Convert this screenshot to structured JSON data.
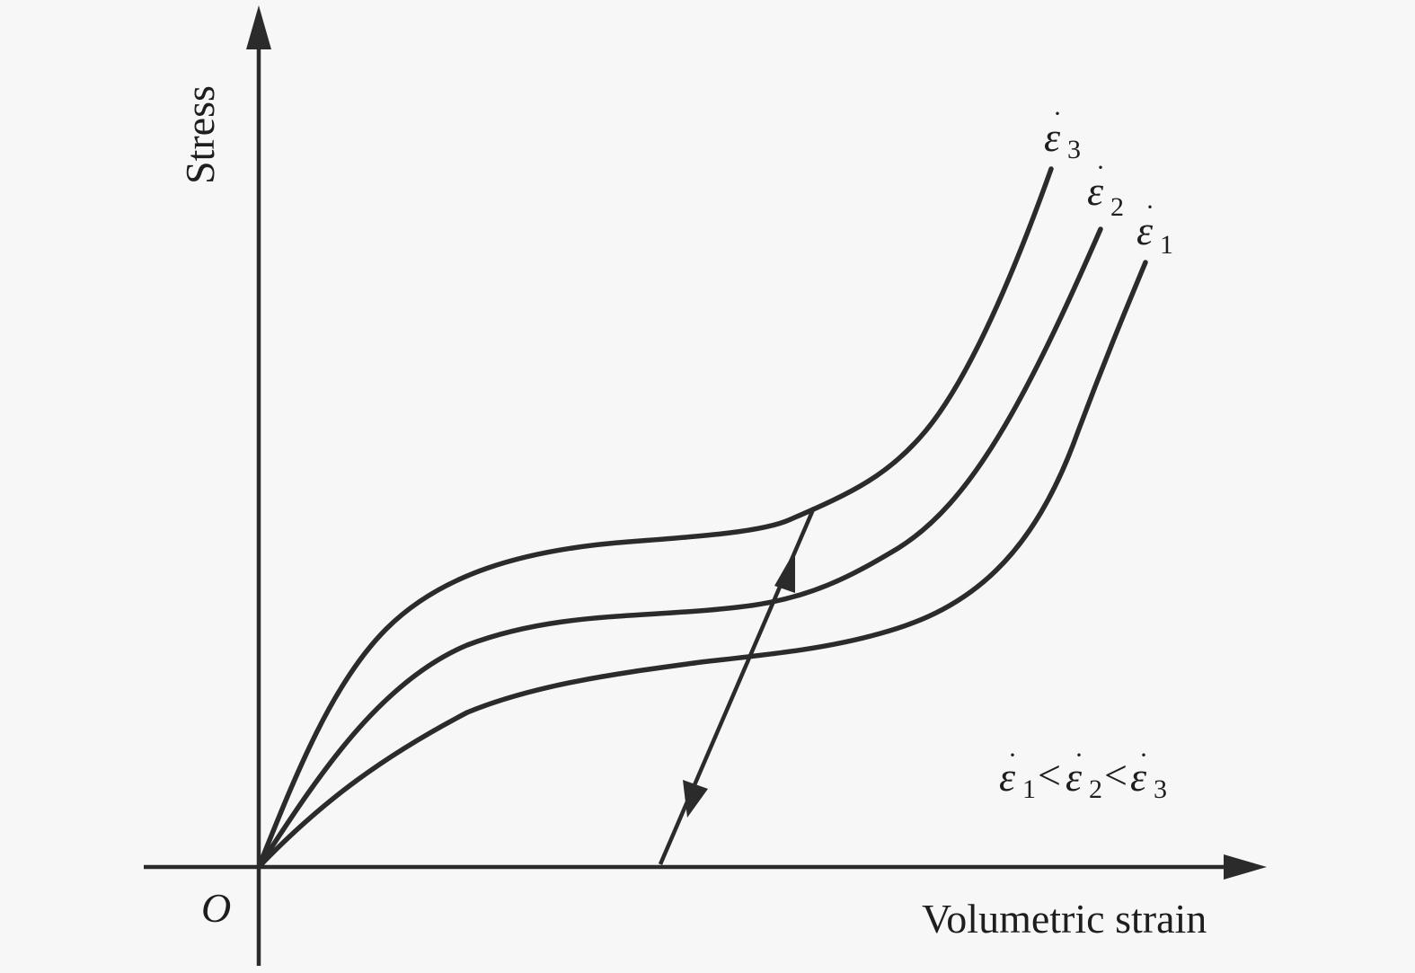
{
  "diagram": {
    "y_axis_label": "Stress",
    "x_axis_label": "Volumetric strain",
    "origin_label": "O",
    "curves": [
      {
        "symbol": "ε",
        "subscript": "3"
      },
      {
        "symbol": "ε",
        "subscript": "2"
      },
      {
        "symbol": "ε",
        "subscript": "1"
      }
    ],
    "relation": {
      "symbol": "ε",
      "sub1": "1",
      "sub2": "2",
      "sub3": "3",
      "op": "<"
    }
  }
}
